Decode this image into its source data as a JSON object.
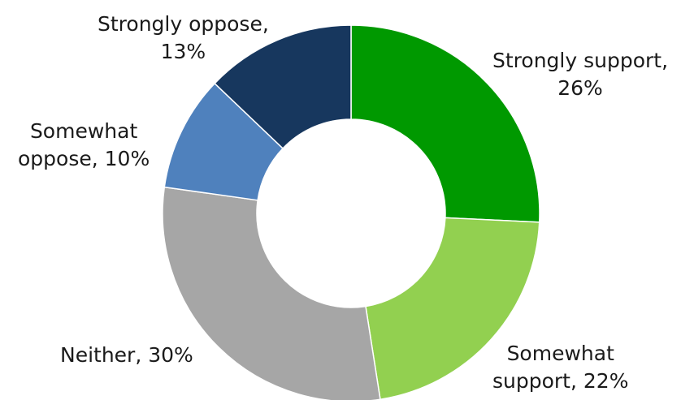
{
  "chart_data": {
    "type": "pie",
    "donut": true,
    "slices": [
      {
        "name": "Strongly support",
        "value": 26,
        "color": "#009900",
        "label_lines": [
          "Strongly support,",
          "26%"
        ]
      },
      {
        "name": "Somewhat support",
        "value": 22,
        "color": "#92D050",
        "label_lines": [
          "Somewhat",
          "support, 22%"
        ]
      },
      {
        "name": "Neither",
        "value": 30,
        "color": "#A6A6A6",
        "label_lines": [
          "Neither, 30%"
        ]
      },
      {
        "name": "Somewhat oppose",
        "value": 10,
        "color": "#4F81BD",
        "label_lines": [
          "Somewhat",
          "oppose, 10%"
        ]
      },
      {
        "name": "Strongly oppose",
        "value": 13,
        "color": "#17375E",
        "label_lines": [
          "Strongly oppose,",
          "13%"
        ]
      }
    ],
    "start_angle": "12 o'clock",
    "direction": "clockwise",
    "legend": "none"
  }
}
